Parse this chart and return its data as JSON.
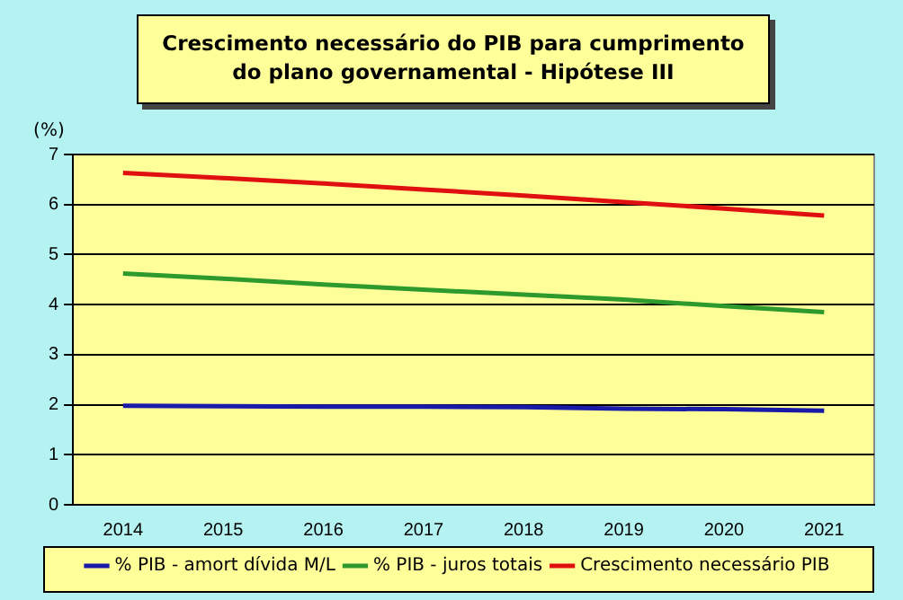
{
  "chart_data": {
    "type": "line",
    "title": "Crescimento necessário do PIB para cumprimento do plano governamental - Hipótese III",
    "ylabel": "(%)",
    "categories": [
      "2014",
      "2015",
      "2016",
      "2017",
      "2018",
      "2019",
      "2020",
      "2021"
    ],
    "series": [
      {
        "name": "% PIB - amort dívida M/L",
        "color": "#1a1aa8",
        "values": [
          1.98,
          1.97,
          1.96,
          1.96,
          1.95,
          1.92,
          1.91,
          1.88
        ]
      },
      {
        "name": "% PIB - juros totais",
        "color": "#2e9a2e",
        "values": [
          4.62,
          4.52,
          4.4,
          4.3,
          4.2,
          4.1,
          3.97,
          3.85
        ]
      },
      {
        "name": "Crescimento necessário PIB",
        "color": "#e01010",
        "values": [
          6.63,
          6.53,
          6.42,
          6.3,
          6.18,
          6.05,
          5.92,
          5.78
        ]
      }
    ],
    "ylim": [
      0,
      7
    ],
    "yticks": [
      0,
      1,
      2,
      3,
      4,
      5,
      6,
      7
    ],
    "grid": "y",
    "legend": "bottom",
    "marker": "none",
    "line_style": "solid"
  }
}
